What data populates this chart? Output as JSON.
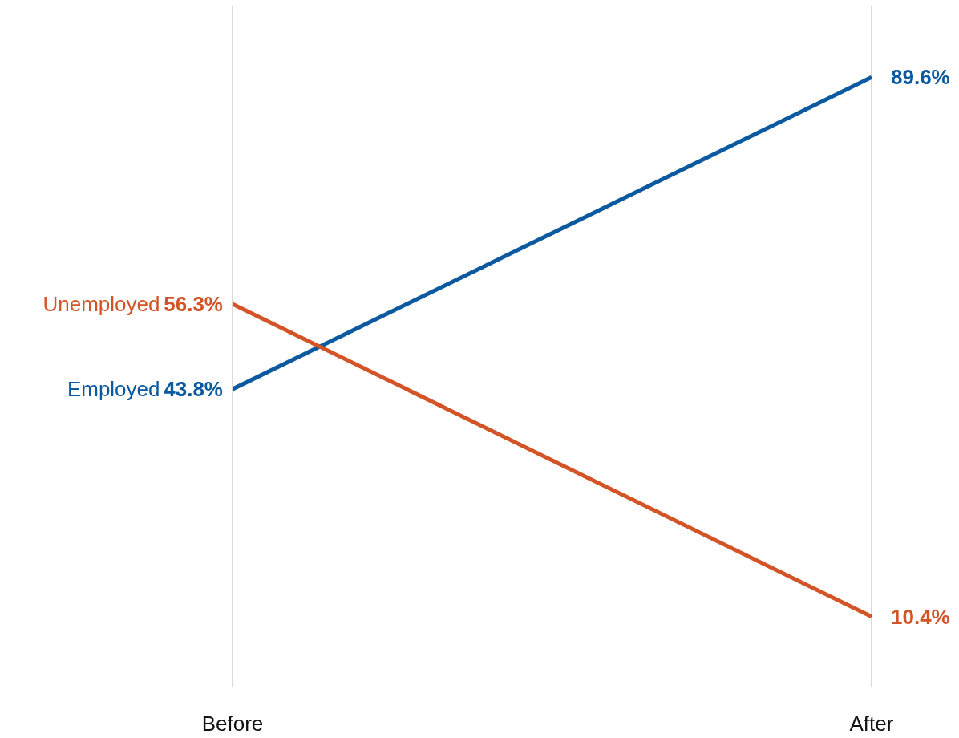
{
  "chart_data": {
    "type": "line",
    "categories": [
      "Before",
      "After"
    ],
    "series": [
      {
        "name": "Employed",
        "color": "#0b5aa0",
        "values": [
          43.8,
          89.6
        ],
        "value_labels": [
          "43.8%",
          "89.6%"
        ]
      },
      {
        "name": "Unemployed",
        "color": "#d35427",
        "values": [
          56.3,
          10.4
        ],
        "value_labels": [
          "56.3%",
          "10.4%"
        ]
      }
    ],
    "ylim": [
      0,
      100
    ],
    "grid": "x",
    "tick_labels": "x"
  }
}
